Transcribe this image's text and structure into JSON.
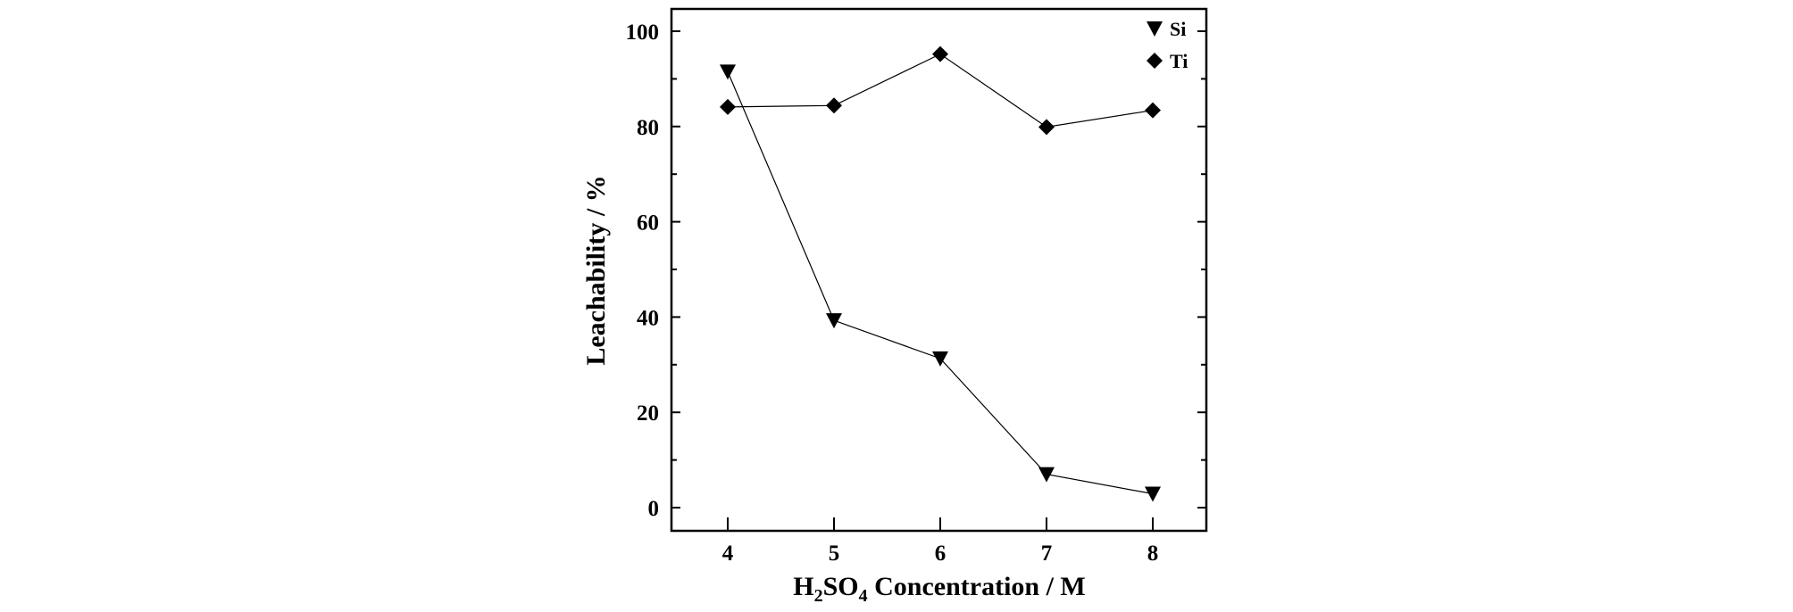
{
  "chart_data": {
    "type": "line",
    "title": "",
    "xlabel": {
      "prefix": "H",
      "sub1": "2",
      "mid": "SO",
      "sub2": "4",
      "suffix": " Concentration / M"
    },
    "ylabel": "Leachability / %",
    "x": [
      4,
      5,
      6,
      7,
      8
    ],
    "xlim": [
      3.1,
      8.5
    ],
    "ylim": [
      -5,
      106
    ],
    "xticks": [
      4,
      5,
      6,
      7,
      8
    ],
    "yticks": [
      0,
      20,
      40,
      60,
      80,
      100
    ],
    "yminor": [
      10,
      30,
      50,
      70,
      90
    ],
    "legend_position": "top-right",
    "grid": false,
    "series": [
      {
        "name": "Si",
        "marker": "triangle-down",
        "values": [
          91.5,
          39.3,
          31.3,
          7.0,
          2.9
        ]
      },
      {
        "name": "Ti",
        "marker": "diamond",
        "values": [
          84.1,
          84.4,
          95.2,
          79.9,
          83.4
        ]
      }
    ],
    "colors": {
      "line": "#000000",
      "marker": "#000000"
    }
  }
}
